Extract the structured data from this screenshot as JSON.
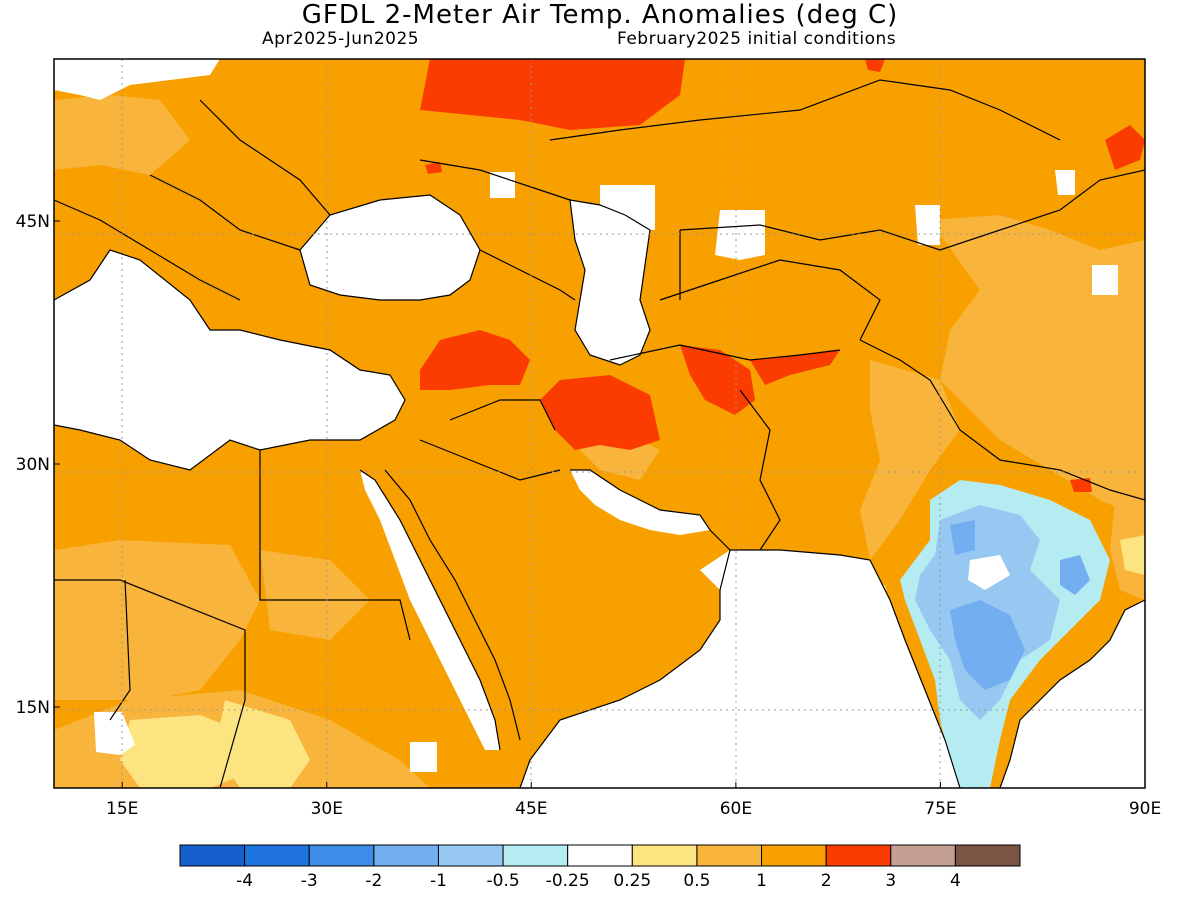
{
  "title": "GFDL 2-Meter Air Temp. Anomalies (deg C)",
  "subtitle_left": "Apr2025-Jun2025",
  "subtitle_right": "February2025 initial conditions",
  "map": {
    "lon_range": [
      10,
      90
    ],
    "lat_range": [
      10,
      55
    ],
    "lon_ticks": [
      {
        "value": 15,
        "label": "15E"
      },
      {
        "value": 30,
        "label": "30E"
      },
      {
        "value": 45,
        "label": "45E"
      },
      {
        "value": 60,
        "label": "60E"
      },
      {
        "value": 75,
        "label": "75E"
      },
      {
        "value": 90,
        "label": "90E"
      }
    ],
    "lat_ticks": [
      {
        "value": 15,
        "label": "15N"
      },
      {
        "value": 30,
        "label": "30N"
      },
      {
        "value": 45,
        "label": "45N"
      }
    ],
    "grid_lines": "dotted"
  },
  "colorbar": {
    "colors": [
      "#1560cc",
      "#1f74e0",
      "#3c8ce8",
      "#72aef0",
      "#96c8f2",
      "#b4ecf2",
      "#ffffff",
      "#fce580",
      "#f9b43c",
      "#f7a000",
      "#fa3c00",
      "#c4a094",
      "#7a5544"
    ],
    "labels": [
      "-4",
      "-3",
      "-2",
      "-1",
      "-0.5",
      "-0.25",
      "0.25",
      "0.5",
      "1",
      "2",
      "3",
      "4"
    ]
  },
  "palette": {
    "land_default": "#f7a000",
    "moderate": "#f9b43c",
    "strong": "#fa3c00",
    "weak": "#fce580",
    "cool_weak": "#b4ecf2",
    "cool": "#96c8f2",
    "cool_strong": "#72aef0"
  }
}
